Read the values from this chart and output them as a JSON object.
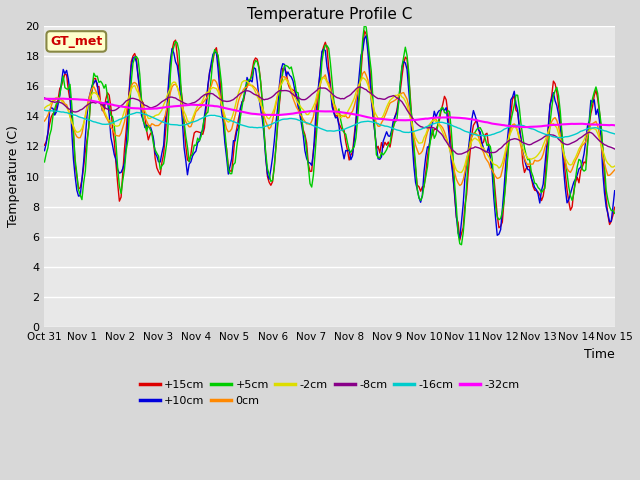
{
  "title": "Temperature Profile C",
  "xlabel": "Time",
  "ylabel": "Temperature (C)",
  "ylim": [
    0,
    20
  ],
  "yticks": [
    0,
    2,
    4,
    6,
    8,
    10,
    12,
    14,
    16,
    18,
    20
  ],
  "fig_bg": "#d8d8d8",
  "plot_bg": "#e8e8e8",
  "legend_label": "GT_met",
  "series_labels": [
    "+15cm",
    "+10cm",
    "+5cm",
    "0cm",
    "-2cm",
    "-8cm",
    "-16cm",
    "-32cm"
  ],
  "series_colors": [
    "#dd0000",
    "#0000dd",
    "#00cc00",
    "#ff8800",
    "#dddd00",
    "#880088",
    "#00cccc",
    "#ff00ff"
  ],
  "series_lw": [
    1.0,
    1.0,
    1.0,
    1.0,
    1.0,
    1.0,
    1.0,
    1.5
  ],
  "xtick_labels": [
    "Oct 31",
    "Nov 1",
    "Nov 2",
    "Nov 3",
    "Nov 4",
    "Nov 5",
    "Nov 6",
    "Nov 7",
    "Nov 8",
    "Nov 9",
    "Nov 10",
    "Nov 11",
    "Nov 12",
    "Nov 13",
    "Nov 14",
    "Nov 15"
  ],
  "num_points": 336,
  "figsize": [
    6.4,
    4.8
  ],
  "dpi": 100
}
